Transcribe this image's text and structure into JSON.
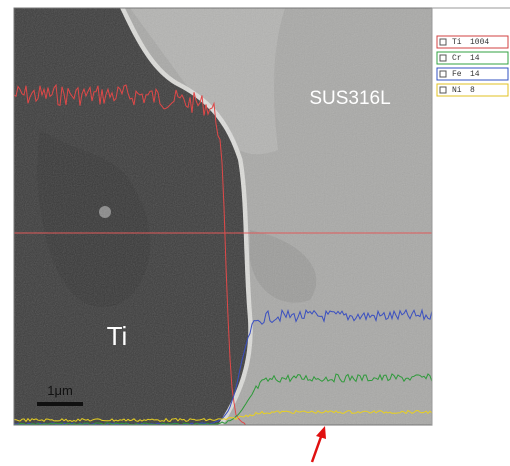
{
  "labels": {
    "region_right": "SUS316L",
    "region_left": "Ti",
    "scale_bar": "1μm"
  },
  "legend": [
    {
      "element": "Ti",
      "count": 1004
    },
    {
      "element": "Cr",
      "count": 14
    },
    {
      "element": "Fe",
      "count": 14
    },
    {
      "element": "Ni",
      "count": 8
    }
  ]
}
